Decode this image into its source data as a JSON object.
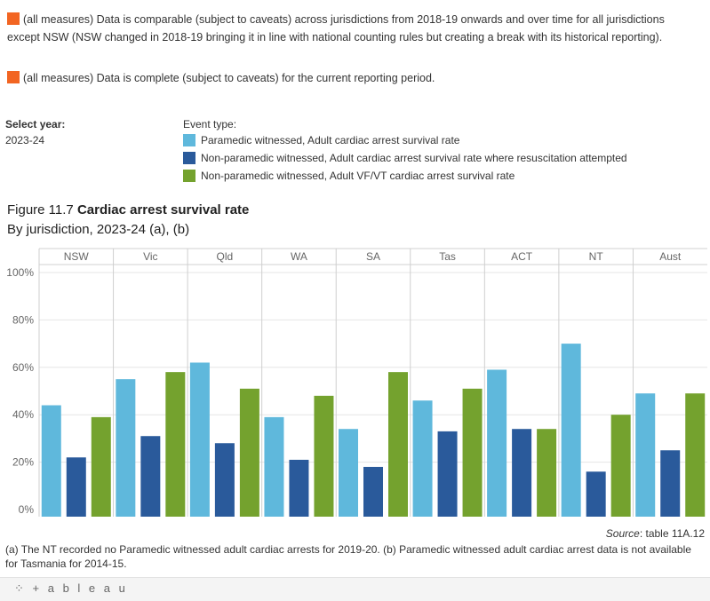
{
  "notes": [
    "(all measures) Data is comparable (subject to caveats) across jurisdictions from 2018-19 onwards and over time for all jurisdictions except NSW (NSW changed in 2018-19 bringing it in line with national counting rules but creating a break with its historical reporting).",
    "(all measures) Data is complete (subject to caveats) for the current reporting period."
  ],
  "note_color": "#f26522",
  "controls": {
    "year_label": "Select year:",
    "year_value": "2023-24",
    "event_type_label": "Event type:"
  },
  "figure": {
    "title_prefix": "Figure 11.7",
    "title_bold": "Cardiac arrest survival rate",
    "subtitle": "By jurisdiction, 2023-24 (a), (b)"
  },
  "chart_data": {
    "type": "bar",
    "categories": [
      "NSW",
      "Vic",
      "Qld",
      "WA",
      "SA",
      "Tas",
      "ACT",
      "NT",
      "Aust"
    ],
    "series": [
      {
        "name": "Paramedic witnessed, Adult cardiac arrest survival rate",
        "color": "#5fb8dc",
        "values": [
          44,
          55,
          62,
          39,
          34,
          46,
          59,
          70,
          49
        ]
      },
      {
        "name": "Non-paramedic witnessed, Adult cardiac arrest survival rate where resuscitation attempted",
        "color": "#2a5a9b",
        "values": [
          22,
          31,
          28,
          21,
          18,
          33,
          34,
          16,
          25
        ]
      },
      {
        "name": "Non-paramedic witnessed, Adult VF/VT cardiac arrest survival rate",
        "color": "#74a22e",
        "values": [
          39,
          58,
          51,
          48,
          58,
          51,
          34,
          40,
          49
        ]
      }
    ],
    "yticks": [
      "0%",
      "20%",
      "40%",
      "60%",
      "80%",
      "100%"
    ],
    "ylim": [
      0,
      100
    ],
    "grid": true,
    "legend": "top"
  },
  "source_label": "Source",
  "source_text": ": table 11A.12",
  "footnote": "(a) The NT recorded no Paramedic witnessed adult cardiac arrests for 2019-20. (b) Paramedic witnessed adult cardiac arrest data is not available for Tasmania for 2014-15.",
  "logo_text": "+ a b l e a u"
}
